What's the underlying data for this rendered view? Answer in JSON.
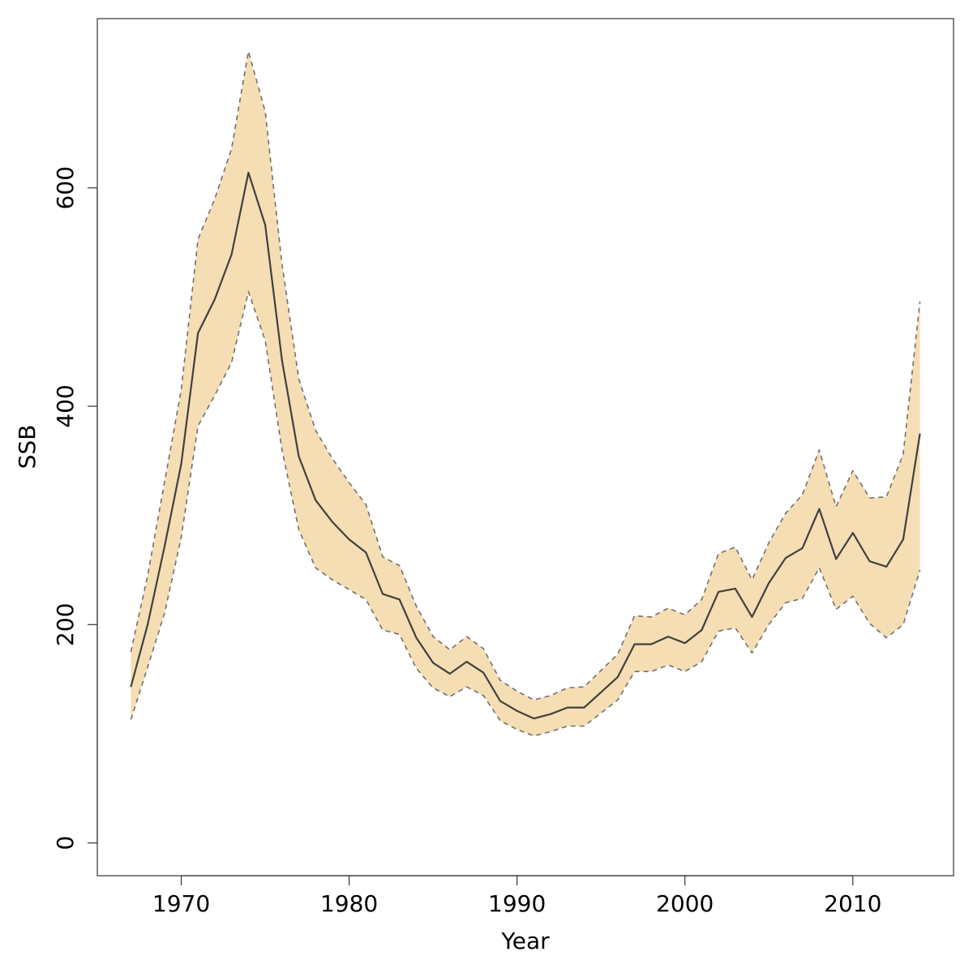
{
  "chart_data": {
    "type": "area",
    "xlabel": "Year",
    "ylabel": "SSB",
    "xlim": [
      1965,
      2016
    ],
    "ylim": [
      -30,
      755
    ],
    "xticks": [
      1970,
      1980,
      1990,
      2000,
      2010
    ],
    "yticks": [
      0,
      200,
      400,
      600
    ],
    "grid": false,
    "legend": "none",
    "colors": {
      "band": "#f5deb3",
      "line": "#404040",
      "bound": "#707070",
      "axis": "#333333"
    },
    "x": [
      1967,
      1968,
      1969,
      1970,
      1971,
      1972,
      1973,
      1974,
      1975,
      1976,
      1977,
      1978,
      1979,
      1980,
      1981,
      1982,
      1983,
      1984,
      1985,
      1986,
      1987,
      1988,
      1989,
      1990,
      1991,
      1992,
      1993,
      1994,
      1995,
      1996,
      1997,
      1998,
      1999,
      2000,
      2001,
      2002,
      2003,
      2004,
      2005,
      2006,
      2007,
      2008,
      2009,
      2010,
      2011,
      2012,
      2013,
      2014
    ],
    "series": [
      {
        "values": [
          143,
          200,
          271,
          347,
          467,
          498,
          539,
          614,
          566,
          442,
          354,
          314,
          294,
          278,
          266,
          228,
          223,
          188,
          165,
          155,
          166,
          156,
          130,
          121,
          114,
          118,
          124,
          124,
          138,
          152,
          182,
          182,
          189,
          183,
          195,
          230,
          233,
          207,
          238,
          261,
          270,
          306,
          260,
          284,
          258,
          253,
          278,
          375
        ]
      },
      {
        "values": [
          113,
          161,
          210,
          280,
          382,
          410,
          440,
          505,
          460,
          360,
          287,
          252,
          241,
          232,
          223,
          195,
          191,
          160,
          142,
          134,
          143,
          135,
          112,
          104,
          98,
          102,
          107,
          107,
          119,
          131,
          157,
          157,
          163,
          157,
          166,
          194,
          197,
          174,
          200,
          220,
          224,
          252,
          214,
          226,
          201,
          188,
          200,
          250
        ]
      },
      {
        "values": [
          175,
          245,
          330,
          415,
          553,
          590,
          636,
          725,
          670,
          530,
          425,
          378,
          352,
          330,
          310,
          262,
          254,
          217,
          189,
          177,
          189,
          178,
          149,
          139,
          131,
          135,
          142,
          143,
          158,
          173,
          208,
          207,
          215,
          209,
          223,
          265,
          271,
          241,
          275,
          302,
          319,
          360,
          308,
          341,
          316,
          317,
          356,
          496
        ]
      }
    ]
  }
}
